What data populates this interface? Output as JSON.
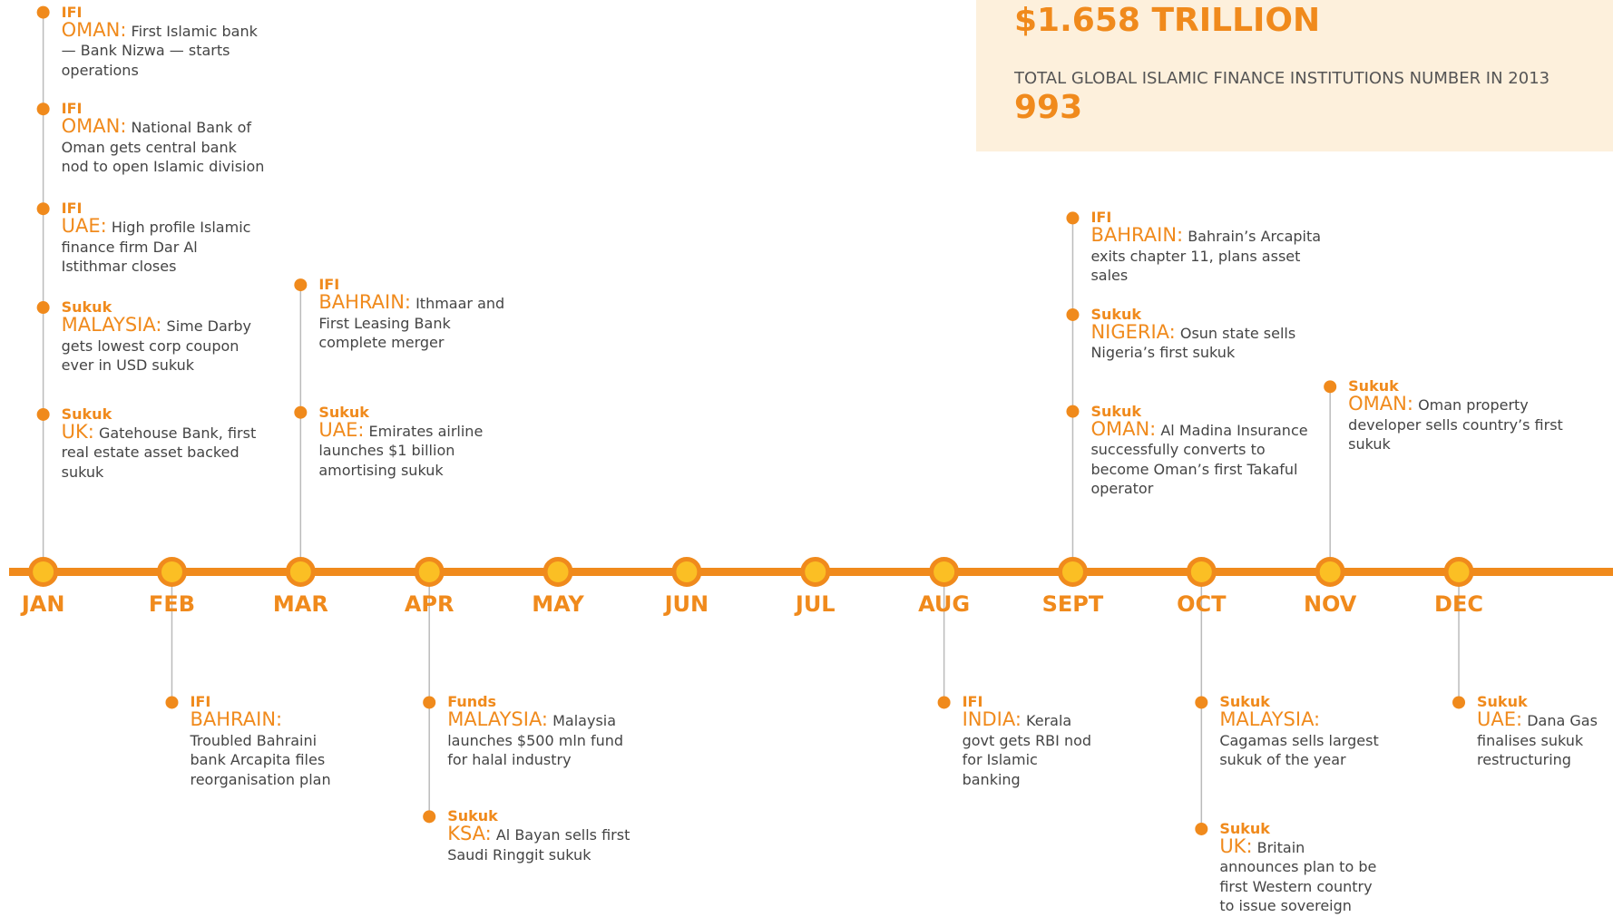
{
  "stats": [
    {
      "value": "$1.658 TRILLION"
    },
    {
      "label": "TOTAL GLOBAL ISLAMIC FINANCE INSTITUTIONS NUMBER IN 2013",
      "value": "993"
    }
  ],
  "months": [
    {
      "name": "JAN",
      "above": [
        {
          "category": "IFI",
          "country": "OMAN:",
          "text": "First Islamic bank — Bank Nizwa — starts operations"
        },
        {
          "category": "IFI",
          "country": "OMAN:",
          "text": "National Bank of Oman gets central bank nod to open Islamic division"
        },
        {
          "category": "IFI",
          "country": "UAE:",
          "text": "High profile Islamic finance firm Dar Al Istithmar closes"
        },
        {
          "category": "Sukuk",
          "country": "MALAYSIA:",
          "text": "Sime Darby gets lowest corp coupon ever in USD sukuk"
        },
        {
          "category": "Sukuk",
          "country": "UK:",
          "text": "Gatehouse Bank, first real estate asset backed sukuk"
        }
      ],
      "below": []
    },
    {
      "name": "FEB",
      "above": [],
      "below": [
        {
          "category": "IFI",
          "country": "BAHRAIN:",
          "text": "Troubled Bahraini bank Arcapita files reorganisation plan"
        }
      ]
    },
    {
      "name": "MAR",
      "above": [
        {
          "category": "IFI",
          "country": "BAHRAIN:",
          "text": "Ithmaar and First Leasing Bank complete merger"
        },
        {
          "category": "Sukuk",
          "country": "UAE:",
          "text": "Emirates airline launches $1 billion amortising sukuk"
        }
      ],
      "below": []
    },
    {
      "name": "APR",
      "above": [],
      "below": [
        {
          "category": "Funds",
          "country": "MALAYSIA:",
          "text": "Malaysia launches $500 mln fund for halal industry"
        },
        {
          "category": "Sukuk",
          "country": "KSA:",
          "text": "Al Bayan sells first Saudi Ringgit sukuk"
        }
      ]
    },
    {
      "name": "MAY",
      "above": [],
      "below": []
    },
    {
      "name": "JUN",
      "above": [],
      "below": []
    },
    {
      "name": "JUL",
      "above": [],
      "below": []
    },
    {
      "name": "AUG",
      "above": [],
      "below": [
        {
          "category": "IFI",
          "country": "INDIA:",
          "text": "Kerala govt gets RBI nod for Islamic banking"
        }
      ]
    },
    {
      "name": "SEPT",
      "above": [
        {
          "category": "IFI",
          "country": "BAHRAIN:",
          "text": "Bahrain’s Arcapita exits chapter 11, plans asset sales"
        },
        {
          "category": "Sukuk",
          "country": "NIGERIA:",
          "text": "Osun state sells Nigeria’s first sukuk"
        },
        {
          "category": "Sukuk",
          "country": "OMAN:",
          "text": "Al Madina Insurance successfully converts to become Oman’s first Takaful operator"
        }
      ],
      "below": []
    },
    {
      "name": "OCT",
      "above": [],
      "below": [
        {
          "category": "Sukuk",
          "country": "MALAYSIA:",
          "text": "Cagamas sells largest sukuk of the year"
        },
        {
          "category": "Sukuk",
          "country": "UK:",
          "text": "Britain announces plan to be first Western country to issue sovereign"
        }
      ]
    },
    {
      "name": "NOV",
      "above": [
        {
          "category": "Sukuk",
          "country": "OMAN:",
          "text": "Oman property developer sells country’s first sukuk"
        }
      ],
      "below": []
    },
    {
      "name": "DEC",
      "above": [],
      "below": [
        {
          "category": "Sukuk",
          "country": "UAE:",
          "text": "Dana Gas finalises sukuk restructuring"
        }
      ]
    }
  ]
}
